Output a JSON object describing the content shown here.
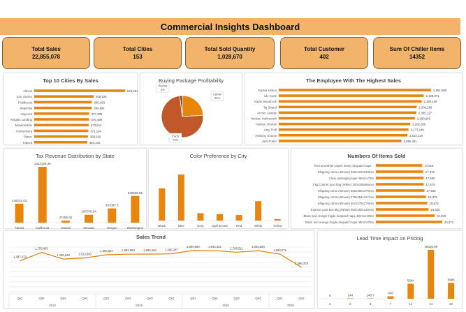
{
  "header": {
    "title": "Commercial Insights Dashboard"
  },
  "kpis": [
    {
      "label": "Total Sales",
      "value": "22,855,078"
    },
    {
      "label": "Total Cities",
      "value": "153"
    },
    {
      "label": "Total Sold Quantity",
      "value": "1,028,670"
    },
    {
      "label": "Total Customer",
      "value": "402"
    },
    {
      "label": "Sum Of Chiller Items",
      "value": "14352"
    }
  ],
  "colors": {
    "bar": "#e8850f",
    "title_bar": "#f2b36b",
    "card_border": "#8a5a2b",
    "pie": [
      "#e8850f",
      "#c0582a",
      "#6b4a2b"
    ]
  },
  "chart_data": [
    {
      "id": "cities",
      "type": "bar",
      "orientation": "horizontal",
      "title": "Top 10 Cities By Sales",
      "categories": [
        "Akhiok",
        "San Jacinto",
        "Fieldbrook",
        "Wapinitia",
        "Haycock",
        "Knights Landing",
        "Meadowdale",
        "Vonnenberg",
        "Placer",
        "Kapa'a"
      ],
      "values": [
        623651,
        408525,
        395483,
        394691,
        377386,
        376489,
        373914,
        371134,
        368626,
        364315
      ],
      "labels": [
        "623,651",
        "408,525",
        "395,483",
        "394,691",
        "377,386",
        "376,489",
        "373,914",
        "371,134",
        "368,626",
        "364,315"
      ]
    },
    {
      "id": "pie",
      "type": "pie",
      "title": "Buying Package Profitability",
      "categories": [
        "Carton",
        "Each",
        "Packet"
      ],
      "values": [
        24,
        74,
        2
      ],
      "labels": [
        "24%",
        "74%",
        "2%"
      ]
    },
    {
      "id": "employees",
      "type": "bar",
      "orientation": "horizontal",
      "title": "The Employee With The Highest Sales",
      "categories": [
        "Sophia Hinton",
        "Lily Code",
        "Kayla Woodcock",
        "Taj Shand",
        "Archer Lamble",
        "Hudson Hollinworth",
        "Hudson Onslow",
        "Amy Trefl",
        "Anthony Grosse",
        "Jack Potter"
      ],
      "values": [
        2551690,
        2428971,
        2393146,
        2309299,
        2305127,
        2280646,
        2202359,
        2173149,
        2154119,
        2056331
      ],
      "labels": [
        "2,551,690",
        "2,428,971",
        "2,393,146",
        "2,309,299",
        "2,305,127",
        "2,280,646",
        "2,202,359",
        "2,173,149",
        "2,154,119",
        "2,056,331"
      ]
    },
    {
      "id": "tax",
      "type": "bar",
      "title": "Tax Revenue Distribution by State",
      "categories": [
        "Alaska",
        "California",
        "Hawaii",
        "Nevada",
        "Oregon",
        "Washington"
      ],
      "values": [
        449231.03,
        1323128.45,
        47456.92,
        187070.34,
        337087.5,
        632508.56
      ],
      "labels": [
        "449231.03",
        "1323128.45",
        "47456.92",
        "187070.34",
        "337087.5",
        "632508.56"
      ]
    },
    {
      "id": "color",
      "type": "bar",
      "title": "Color Preference by City",
      "categories": [
        "Black",
        "Blue",
        "Gray",
        "Light Brown",
        "Red",
        "White",
        "Yellow"
      ],
      "values": [
        70,
        100,
        16,
        14,
        12,
        42,
        3
      ]
    },
    {
      "id": "items",
      "type": "bar",
      "orientation": "horizontal",
      "title": "Numbers Of Items Sold",
      "categories": [
        "Red and white urgent heavy despatch tape...",
        "Shipping carton (Brown) 356x229x229mm",
        "Clear packaging tape 48mmx75m",
        "3 kg Courier post bag (White) 300x190x95mm",
        "Shipping carton (Brown) 356x356x279mm",
        "Shipping carton (Brown) 279x254x217mm",
        "Shipping carton (Brown) 457x279x279mm",
        "Express post box 5kg (White) 350x280x130mm",
        "Black and orange fragile despatch tape 48mmx100m",
        "Black and orange fragile despatch tape 48mmx75m"
      ],
      "values": [
        17016,
        17375,
        17550,
        17575,
        17825,
        18375,
        18875,
        19325,
        21600,
        24372
      ],
      "labels": [
        "17,016",
        "17,375",
        "17,550",
        "17,575",
        "17,825",
        "18,375",
        "18,875",
        "19,325",
        "21,600",
        "24,372"
      ]
    },
    {
      "id": "trend",
      "type": "line",
      "title": "Sales Trend",
      "ylim": [
        0,
        2000000
      ],
      "grid": true,
      "years": [
        "2013",
        "2014",
        "2015",
        "2016"
      ],
      "quarters": [
        "Qtr1",
        "Qtr2",
        "Qtr3",
        "Qtr4",
        "Qtr1",
        "Qtr2",
        "Qtr3",
        "Qtr4",
        "Qtr1",
        "Qtr2",
        "Qtr3",
        "Qtr4",
        "Qtr1",
        "Qtr2"
      ],
      "year_of_point": [
        "2013",
        "2013",
        "2013",
        "2013",
        "2014",
        "2014",
        "2014",
        "2014",
        "2015",
        "2015",
        "2015",
        "2015",
        "2016",
        "2016"
      ],
      "values": [
        1387473,
        1759983,
        1465649,
        1513540,
        1654597,
        1683868,
        1685184,
        1698287,
        1850692,
        1844331,
        1768511,
        1836590,
        1689079,
        1096378
      ],
      "labels": [
        "1,387,473",
        "1,759,983",
        "1,465,649",
        "1,513,540",
        "1,654,597",
        "1,683,868",
        "1,685,184",
        "1,698,287",
        "1,850,692",
        "1,844,331",
        "1,768,511",
        "1,836,590",
        "1,689,079",
        "1,096,378"
      ]
    },
    {
      "id": "lead",
      "type": "bar",
      "title": "Lead Time Impact on Pricing",
      "categories": [
        "0",
        "2",
        "3",
        "7",
        "12",
        "14",
        "20"
      ],
      "values": [
        0,
        144,
        148.7,
        936,
        5664,
        18439.98,
        5985
      ],
      "labels": [
        "0",
        "144",
        "148.7",
        "936",
        "5664",
        "18439.98",
        "5985"
      ]
    }
  ]
}
